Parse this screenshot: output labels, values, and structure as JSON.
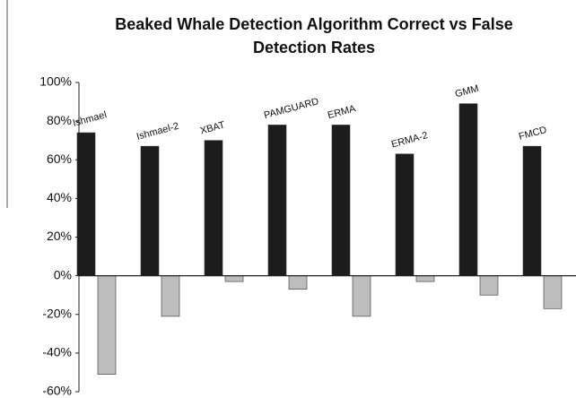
{
  "chart_data": {
    "type": "bar",
    "title": "Beaked Whale Detection Algorithm Correct vs False Detection Rates",
    "categories": [
      "Ishmael",
      "Ishmael-2",
      "XBAT",
      "PAMGUARD",
      "ERMA",
      "ERMA-2",
      "GMM",
      "FMCD"
    ],
    "series": [
      {
        "color": "#1c1c1c",
        "values": [
          74,
          67,
          70,
          78,
          78,
          63,
          89,
          67
        ]
      },
      {
        "color": "#bdbdbd",
        "values": [
          -51,
          -21,
          -3,
          -7,
          -21,
          -3,
          -10,
          -17
        ]
      }
    ],
    "ylim": [
      -60,
      100
    ],
    "yticks": [
      {
        "value": 100,
        "label": "100%"
      },
      {
        "value": 80,
        "label": "80%"
      },
      {
        "value": 60,
        "label": "60%"
      },
      {
        "value": 40,
        "label": "40%"
      },
      {
        "value": 20,
        "label": "20%"
      },
      {
        "value": 0,
        "label": "0%"
      },
      {
        "value": -20,
        "label": "-20%"
      },
      {
        "value": -40,
        "label": "-40%"
      },
      {
        "value": -60,
        "label": "-60%"
      }
    ],
    "grid": false
  }
}
